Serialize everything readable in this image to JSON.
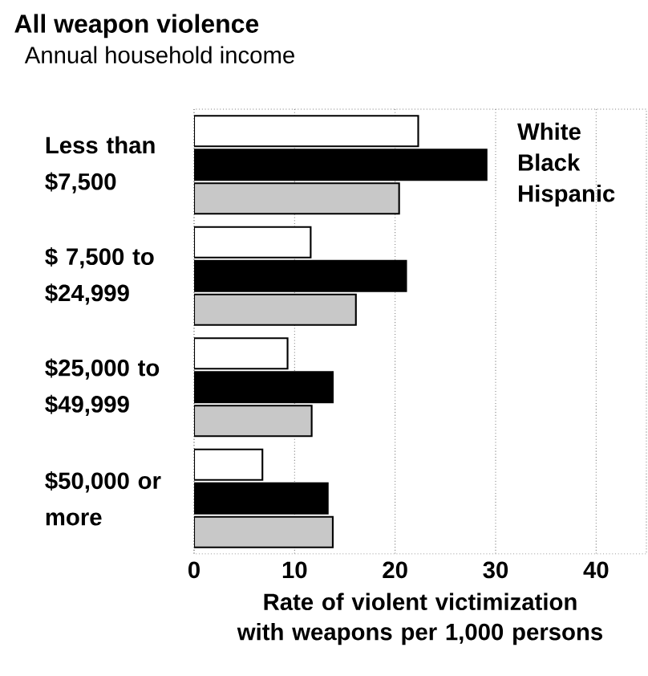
{
  "chart_data": {
    "type": "bar",
    "orientation": "horizontal",
    "title": "All weapon violence",
    "subtitle": "Annual household income",
    "xlabel": "Rate of violent victimization with weapons per 1,000 persons",
    "categories": [
      "Less than $7,500",
      "$ 7,500 to $24,999",
      "$25,000 to $49,999",
      "$50,000 or more"
    ],
    "series": [
      {
        "name": "White",
        "color": "#ffffff",
        "values": [
          22.3,
          11.6,
          9.3,
          6.8
        ]
      },
      {
        "name": "Black",
        "color": "#000000",
        "values": [
          29.1,
          21.1,
          13.8,
          13.3
        ]
      },
      {
        "name": "Hispanic",
        "color": "#c8c8c8",
        "values": [
          20.4,
          16.1,
          11.7,
          13.8
        ]
      }
    ],
    "xlim": [
      0,
      45
    ],
    "xticks": [
      0,
      10,
      20,
      30,
      40
    ],
    "grid": "x",
    "legend": "top right"
  }
}
